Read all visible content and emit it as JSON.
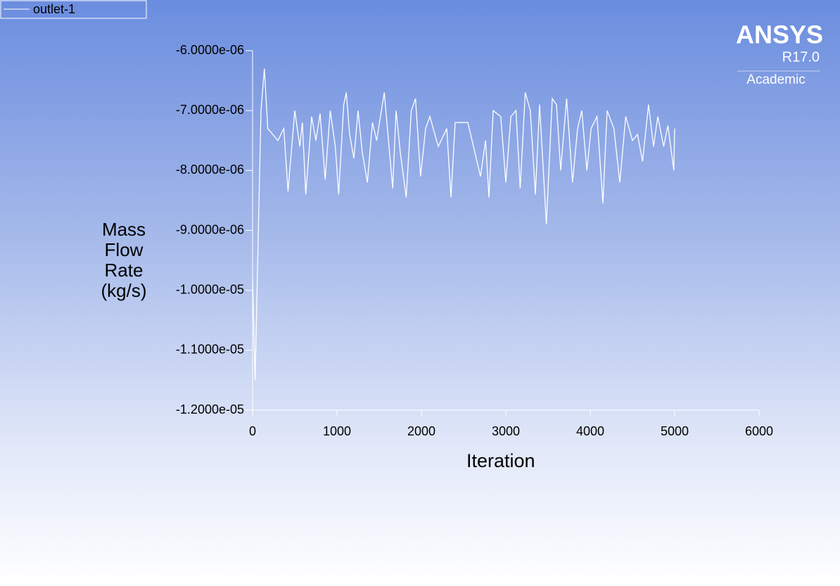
{
  "chart_data": {
    "type": "line",
    "xlabel": "Iteration",
    "ylabel": "Mass Flow Rate (kg/s)",
    "logo": {
      "name": "ANSYS",
      "version": "R17.0",
      "edition": "Academic"
    },
    "x": [
      0,
      30,
      100,
      140,
      180,
      300,
      370,
      420,
      500,
      560,
      590,
      630,
      700,
      750,
      800,
      860,
      920,
      980,
      1020,
      1080,
      1110,
      1150,
      1200,
      1250,
      1300,
      1360,
      1420,
      1470,
      1560,
      1660,
      1700,
      1750,
      1820,
      1880,
      1930,
      1990,
      2050,
      2100,
      2200,
      2300,
      2350,
      2400,
      2550,
      2650,
      2700,
      2760,
      2800,
      2850,
      2940,
      3000,
      3060,
      3120,
      3170,
      3230,
      3290,
      3350,
      3400,
      3480,
      3550,
      3600,
      3650,
      3720,
      3790,
      3850,
      3900,
      3960,
      4010,
      4080,
      4150,
      4200,
      4280,
      4350,
      4420,
      4500,
      4560,
      4620,
      4690,
      4750,
      4800,
      4870,
      4920,
      4990,
      5000
    ],
    "series": [
      {
        "name": "outlet-1",
        "color": "#ffffff",
        "values": [
          -9.8e-06,
          -1.15e-05,
          -7e-06,
          -6.3e-06,
          -7.3e-06,
          -7.5e-06,
          -7.3e-06,
          -8.35e-06,
          -7e-06,
          -7.6e-06,
          -7.2e-06,
          -8.4e-06,
          -7.1e-06,
          -7.5e-06,
          -7.05e-06,
          -8.15e-06,
          -7e-06,
          -7.6e-06,
          -8.4e-06,
          -6.9e-06,
          -6.7e-06,
          -7.4e-06,
          -7.8e-06,
          -7e-06,
          -7.7e-06,
          -8.2e-06,
          -7.2e-06,
          -7.5e-06,
          -6.7e-06,
          -8.3e-06,
          -7e-06,
          -7.7e-06,
          -8.45e-06,
          -7e-06,
          -6.8e-06,
          -8.1e-06,
          -7.3e-06,
          -7.1e-06,
          -7.6e-06,
          -7.3e-06,
          -8.45e-06,
          -7.2e-06,
          -7.2e-06,
          -7.8e-06,
          -8.1e-06,
          -7.5e-06,
          -8.45e-06,
          -7e-06,
          -7.1e-06,
          -8.2e-06,
          -7.1e-06,
          -7e-06,
          -8.3e-06,
          -6.7e-06,
          -7e-06,
          -8.4e-06,
          -6.9e-06,
          -8.9e-06,
          -6.8e-06,
          -6.9e-06,
          -8e-06,
          -6.8e-06,
          -8.2e-06,
          -7.3e-06,
          -7e-06,
          -8e-06,
          -7.3e-06,
          -7.1e-06,
          -8.55e-06,
          -7e-06,
          -7.3e-06,
          -8.2e-06,
          -7.1e-06,
          -7.5e-06,
          -7.4e-06,
          -7.85e-06,
          -6.9e-06,
          -7.6e-06,
          -7.1e-06,
          -7.6e-06,
          -7.25e-06,
          -8e-06,
          -7.3e-06
        ]
      }
    ],
    "xlim": [
      0,
      6000
    ],
    "xticks": [
      0,
      1000,
      2000,
      3000,
      4000,
      5000,
      6000
    ],
    "ylim": [
      -1.2e-05,
      -6e-06
    ],
    "yticks": [
      {
        "value": -1.2e-05,
        "label": "-1.2000e-05"
      },
      {
        "value": -1.1e-05,
        "label": "-1.1000e-05"
      },
      {
        "value": -1e-05,
        "label": "-1.0000e-05"
      },
      {
        "value": -9e-06,
        "label": "-9.0000e-06"
      },
      {
        "value": -8e-06,
        "label": "-8.0000e-06"
      },
      {
        "value": -7e-06,
        "label": "-7.0000e-06"
      },
      {
        "value": -6e-06,
        "label": "-6.0000e-06"
      }
    ],
    "legend": "top-left"
  }
}
